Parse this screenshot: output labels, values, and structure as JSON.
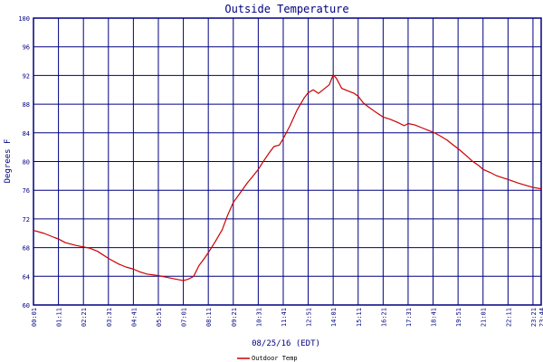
{
  "chart_data": {
    "type": "line",
    "title": "Outside Temperature",
    "xlabel": "08/25/16 (EDT)",
    "ylabel": "Degrees F",
    "ylim": [
      60,
      100
    ],
    "y_ticks": [
      "60",
      "64",
      "68",
      "72",
      "76",
      "80",
      "84",
      "88",
      "92",
      "96",
      "100"
    ],
    "x_ticks": [
      "00:01",
      "01:11",
      "02:21",
      "03:31",
      "04:41",
      "05:51",
      "07:01",
      "08:11",
      "09:21",
      "10:31",
      "11:41",
      "12:51",
      "14:01",
      "15:11",
      "16:21",
      "17:31",
      "18:41",
      "19:51",
      "21:01",
      "22:11",
      "23:21",
      "23:44"
    ],
    "grid": true,
    "colors": {
      "series": "#cc0000",
      "grid": "#000080",
      "text": "#000080"
    },
    "series": [
      {
        "name": "Outdoor Temp",
        "points": [
          [
            "00:01",
            70.4
          ],
          [
            "00:30",
            70.0
          ],
          [
            "01:00",
            69.4
          ],
          [
            "01:11",
            69.2
          ],
          [
            "01:30",
            68.7
          ],
          [
            "02:00",
            68.3
          ],
          [
            "02:21",
            68.1
          ],
          [
            "02:40",
            67.9
          ],
          [
            "03:00",
            67.5
          ],
          [
            "03:31",
            66.5
          ],
          [
            "04:00",
            65.7
          ],
          [
            "04:20",
            65.3
          ],
          [
            "04:41",
            65.0
          ],
          [
            "05:00",
            64.6
          ],
          [
            "05:20",
            64.3
          ],
          [
            "05:51",
            64.1
          ],
          [
            "06:10",
            63.9
          ],
          [
            "06:40",
            63.6
          ],
          [
            "07:01",
            63.4
          ],
          [
            "07:15",
            63.6
          ],
          [
            "07:30",
            64.0
          ],
          [
            "07:45",
            65.5
          ],
          [
            "08:00",
            66.5
          ],
          [
            "08:11",
            67.3
          ],
          [
            "08:30",
            68.8
          ],
          [
            "08:50",
            70.5
          ],
          [
            "09:05",
            72.5
          ],
          [
            "09:21",
            74.3
          ],
          [
            "09:40",
            75.6
          ],
          [
            "10:00",
            77.0
          ],
          [
            "10:15",
            77.9
          ],
          [
            "10:31",
            78.9
          ],
          [
            "10:45",
            80.0
          ],
          [
            "11:00",
            81.1
          ],
          [
            "11:15",
            82.1
          ],
          [
            "11:30",
            82.3
          ],
          [
            "11:41",
            83.2
          ],
          [
            "12:00",
            85.0
          ],
          [
            "12:20",
            87.2
          ],
          [
            "12:40",
            88.9
          ],
          [
            "12:51",
            89.6
          ],
          [
            "13:05",
            90.0
          ],
          [
            "13:20",
            89.5
          ],
          [
            "13:35",
            90.1
          ],
          [
            "13:50",
            90.7
          ],
          [
            "14:01",
            92.1
          ],
          [
            "14:10",
            91.6
          ],
          [
            "14:25",
            90.2
          ],
          [
            "14:40",
            89.9
          ],
          [
            "15:00",
            89.5
          ],
          [
            "15:11",
            89.1
          ],
          [
            "15:25",
            88.2
          ],
          [
            "15:40",
            87.6
          ],
          [
            "16:00",
            86.9
          ],
          [
            "16:21",
            86.2
          ],
          [
            "16:40",
            85.9
          ],
          [
            "17:00",
            85.5
          ],
          [
            "17:20",
            85.0
          ],
          [
            "17:31",
            85.3
          ],
          [
            "17:50",
            85.1
          ],
          [
            "18:10",
            84.7
          ],
          [
            "18:30",
            84.3
          ],
          [
            "18:41",
            84.1
          ],
          [
            "19:00",
            83.6
          ],
          [
            "19:20",
            83.0
          ],
          [
            "19:35",
            82.4
          ],
          [
            "19:51",
            81.8
          ],
          [
            "20:10",
            81.0
          ],
          [
            "20:30",
            80.1
          ],
          [
            "20:50",
            79.4
          ],
          [
            "21:01",
            78.9
          ],
          [
            "21:20",
            78.5
          ],
          [
            "21:40",
            78.0
          ],
          [
            "22:11",
            77.5
          ],
          [
            "22:40",
            77.0
          ],
          [
            "23:00",
            76.7
          ],
          [
            "23:21",
            76.4
          ],
          [
            "23:44",
            76.2
          ]
        ]
      }
    ]
  }
}
